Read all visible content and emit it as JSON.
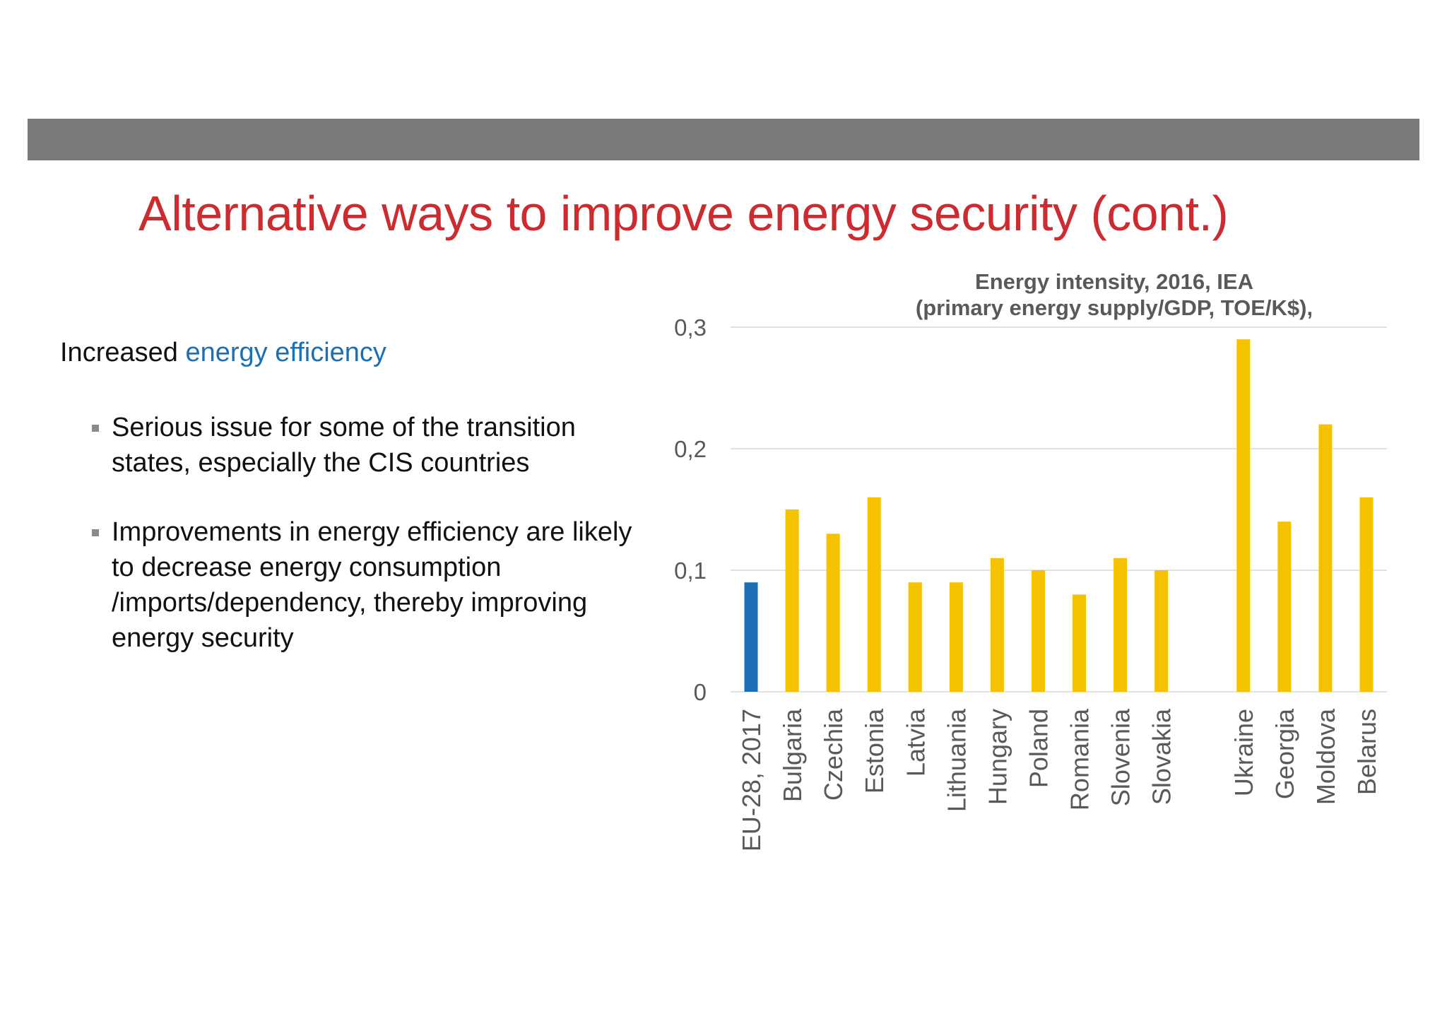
{
  "slide": {
    "title": "Alternative ways to improve energy security (cont.)",
    "intro_prefix": "Increased",
    "intro_highlight": "energy efficiency",
    "bullets": [
      "Serious issue for some of the transition states, especially the CIS countries",
      "Improvements in energy efficiency are likely to decrease energy consumption /imports/dependency, thereby improving energy security"
    ],
    "colors": {
      "title": "#cc2b30",
      "highlight": "#1a6fb5",
      "band": "#7a7a7a"
    }
  },
  "chart_data": {
    "type": "bar",
    "title": "Energy intensity, 2016, IEA",
    "subtitle": "(primary energy supply/GDP, TOE/K$),",
    "xlabel": "",
    "ylabel": "",
    "ylim": [
      0,
      0.3
    ],
    "yticks": [
      {
        "value": 0,
        "label": "0"
      },
      {
        "value": 0.1,
        "label": "0,1"
      },
      {
        "value": 0.2,
        "label": "0,2"
      },
      {
        "value": 0.3,
        "label": "0,3"
      }
    ],
    "grid": true,
    "categories": [
      "EU-28, 2017",
      "Bulgaria",
      "Czechia",
      "Estonia",
      "Latvia",
      "Lithuania",
      "Hungary",
      "Poland",
      "Romania",
      "Slovenia",
      "Slovakia",
      "",
      "Ukraine",
      "Georgia",
      "Moldova",
      "Belarus"
    ],
    "values": [
      0.09,
      0.15,
      0.13,
      0.16,
      0.09,
      0.09,
      0.11,
      0.1,
      0.08,
      0.11,
      0.1,
      null,
      0.29,
      0.14,
      0.22,
      0.16
    ],
    "colors": {
      "highlight": "#1a6fb5",
      "default": "#f5c200",
      "grid": "#d9d9d9",
      "text": "#595959"
    },
    "highlight_index": 0
  }
}
